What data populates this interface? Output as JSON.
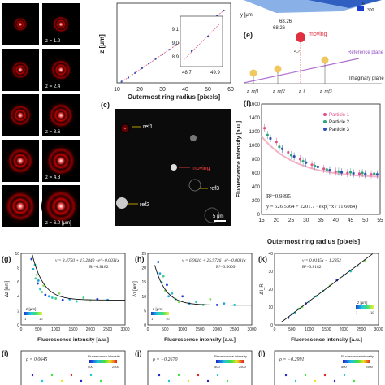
{
  "panels": {
    "a": {
      "labels": [
        "z = 1.2",
        "z = 2.4",
        "z = 3.6",
        "z = 4.8",
        "z = 6.0 [μm]"
      ]
    },
    "b": {
      "ylabel": "z [μm]",
      "xlabel": "Outermost ring radius [pixels]",
      "xticks": [
        "10",
        "20",
        "30",
        "40",
        "50",
        "60"
      ],
      "inset": {
        "yticks": [
          "9.1",
          "9.0",
          "8.9"
        ],
        "xticks": [
          "48.7",
          "49.9"
        ]
      }
    },
    "c": {
      "label": "(c)",
      "annotations": [
        "ref1",
        "moving",
        "ref3",
        "ref2"
      ],
      "scalebar": "5 μm"
    },
    "d": {
      "axis_text": "y [μm]",
      "ticks": [
        "68.26",
        "6",
        "300",
        "68.26"
      ]
    },
    "e": {
      "label": "(e)",
      "moving": "moving",
      "reference_plane": "Reference plane",
      "imaginary_plane": "Imaginary plane",
      "z_labels": [
        "z_ref1",
        "z_ref2",
        "z_r",
        "z_i",
        "z_ref3"
      ]
    },
    "f": {
      "label": "(f)",
      "ylabel": "Fluorescence intensity [a.u.]",
      "xlabel": "Outermost ring radius [pixels]",
      "legend": [
        "Particle 1",
        "Particle 2",
        "Particle 3"
      ],
      "r2": "R²=0.9895",
      "equation": "y = 526.5364 + 2201.7 · exp(−x / 11.6084)"
    },
    "g": {
      "label": "(g)",
      "ylabel": "Δz [nm]",
      "xlabel": "Fluorescence intensity [a.u.]",
      "equation": "y = 3.4750 + 17.2840 · e^−0.0031x",
      "r2": "R²=0.8182",
      "colorbar_label": "z [μm]",
      "colorbar_ticks": [
        "1",
        "10"
      ]
    },
    "h": {
      "label": "(h)",
      "ylabel": "Δτ [nm]",
      "xlabel": "Fluorescence intensity [a.u.]",
      "equation": "y = 6.9016 + 25.9726 · e^−0.0031x",
      "r2": "R²=0.5609",
      "colorbar_label": "z [μm]",
      "colorbar_ticks": [
        "1",
        "10"
      ]
    },
    "k": {
      "label": "(k)",
      "ylabel": "ΔI_R",
      "xlabel": "Fluorescence intensity [a.u.]",
      "equation": "y = 0.0145x − 1.2852",
      "r2": "R²=0.8182",
      "colorbar_label": "z [μm]",
      "colorbar_ticks": [
        "1",
        "10"
      ]
    },
    "i": {
      "label": "(i)",
      "rho": "ρ = 0.0645",
      "cb_title": "Fluorescence intensity",
      "cb_ticks": [
        "500",
        "2500"
      ]
    },
    "j": {
      "label": "(j)",
      "rho": "ρ = −0.2670",
      "cb_title": "Fluorescence intensity",
      "cb_ticks": [
        "500",
        "2500"
      ]
    },
    "l": {
      "label": "(l)",
      "rho": "ρ = −0.2991",
      "cb_title": "Fluorescence intensity",
      "cb_ticks": [
        "500",
        "2500"
      ]
    }
  },
  "chart_data": [
    {
      "type": "line",
      "panel": "b",
      "ylabel": "z [μm]",
      "xlabel": "Outermost ring radius [pixels]",
      "xlim": [
        10,
        60
      ],
      "ylim": [
        0,
        12
      ],
      "x": [
        12,
        15,
        18,
        21,
        24,
        27,
        30,
        33,
        36,
        39,
        42,
        45,
        48,
        51,
        54,
        57
      ],
      "y": [
        0.2,
        0.8,
        1.5,
        2.2,
        2.9,
        3.6,
        4.3,
        5.0,
        5.7,
        6.4,
        7.1,
        7.8,
        8.9,
        9.3,
        10.1,
        10.9
      ]
    },
    {
      "type": "scatter",
      "panel": "f",
      "ylabel": "Fluorescence intensity [a.u.]",
      "xlabel": "Outermost ring radius [pixels]",
      "xlim": [
        15,
        55
      ],
      "ylim": [
        0,
        1600
      ],
      "yticks": [
        0,
        200,
        400,
        600,
        800,
        1000,
        1200,
        1400,
        1600
      ],
      "xticks": [
        15,
        20,
        25,
        30,
        35,
        40,
        45,
        50,
        55
      ],
      "series": [
        {
          "name": "Particle 1",
          "color": "#e0508a",
          "x": [
            16,
            20,
            24,
            28,
            32,
            36,
            40,
            44,
            48,
            52
          ],
          "y": [
            1250,
            1050,
            900,
            800,
            720,
            660,
            620,
            600,
            590,
            580
          ]
        },
        {
          "name": "Particle 2",
          "color": "#28a878",
          "x": [
            17,
            21,
            25,
            29,
            33,
            37,
            41,
            45,
            49,
            53
          ],
          "y": [
            1150,
            980,
            860,
            770,
            700,
            650,
            620,
            610,
            600,
            590
          ]
        },
        {
          "name": "Particle 3",
          "color": "#3050b0",
          "x": [
            18,
            22,
            26,
            30,
            34,
            38,
            42,
            46,
            50,
            54
          ],
          "y": [
            1100,
            950,
            840,
            750,
            690,
            640,
            610,
            595,
            585,
            580
          ]
        }
      ],
      "fit": {
        "a": 526.5364,
        "b": 2201.7,
        "c": 11.6084
      }
    },
    {
      "type": "scatter",
      "panel": "g",
      "ylabel": "Δz [nm]",
      "xlabel": "Fluorescence intensity [a.u.]",
      "xlim": [
        0,
        3000
      ],
      "ylim": [
        0,
        10
      ],
      "xticks": [
        0,
        500,
        1000,
        1500,
        2000,
        2500,
        3000
      ],
      "yticks": [
        0,
        2,
        4,
        6,
        8,
        10
      ],
      "x": [
        300,
        350,
        400,
        420,
        450,
        480,
        500,
        550,
        600,
        650,
        700,
        800,
        900,
        1000,
        1100,
        1200,
        1400,
        1600,
        1800,
        2000,
        2200,
        2500
      ],
      "y": [
        9.2,
        7.8,
        8.4,
        6.5,
        7.0,
        5.8,
        6.2,
        5.0,
        4.6,
        5.5,
        4.2,
        4.0,
        3.8,
        3.7,
        4.4,
        3.5,
        3.6,
        3.3,
        3.8,
        3.4,
        3.6,
        3.5
      ],
      "fit": {
        "a": 3.475,
        "b": 17.284,
        "c": 0.0031
      }
    },
    {
      "type": "scatter",
      "panel": "h",
      "ylabel": "Δτ [nm]",
      "xlabel": "Fluorescence intensity [a.u.]",
      "xlim": [
        0,
        3000
      ],
      "ylim": [
        0,
        25
      ],
      "xticks": [
        0,
        500,
        1000,
        1500,
        2000,
        2500,
        3000
      ],
      "yticks": [
        0,
        5,
        10,
        15,
        20,
        25
      ],
      "x": [
        300,
        350,
        400,
        450,
        500,
        550,
        600,
        700,
        800,
        900,
        1000,
        1200,
        1400,
        1600,
        1800,
        2000,
        2200,
        2500
      ],
      "y": [
        22,
        18,
        15,
        17,
        12,
        14,
        10,
        11,
        9,
        8,
        10,
        7.5,
        8,
        7,
        9,
        7,
        7.5,
        7
      ],
      "fit": {
        "a": 6.9016,
        "b": 25.9726,
        "c": 0.0031
      }
    },
    {
      "type": "scatter",
      "panel": "k",
      "ylabel": "ΔI_R",
      "xlabel": "Fluorescence intensity [a.u.]",
      "xlim": [
        0,
        3000
      ],
      "ylim": [
        0,
        40
      ],
      "xticks": [
        0,
        500,
        1000,
        1500,
        2000,
        2500,
        3000
      ],
      "yticks": [
        0,
        10,
        20,
        30,
        40
      ],
      "x": [
        400,
        500,
        600,
        700,
        800,
        900,
        1000,
        1200,
        1400,
        1600,
        1800,
        2000,
        2200,
        2400,
        2600
      ],
      "y": [
        4,
        6,
        7,
        9,
        10,
        12,
        13,
        16,
        19,
        22,
        25,
        28,
        30,
        33,
        36
      ],
      "fit": {
        "m": 0.0145,
        "b": -1.2852
      }
    }
  ]
}
